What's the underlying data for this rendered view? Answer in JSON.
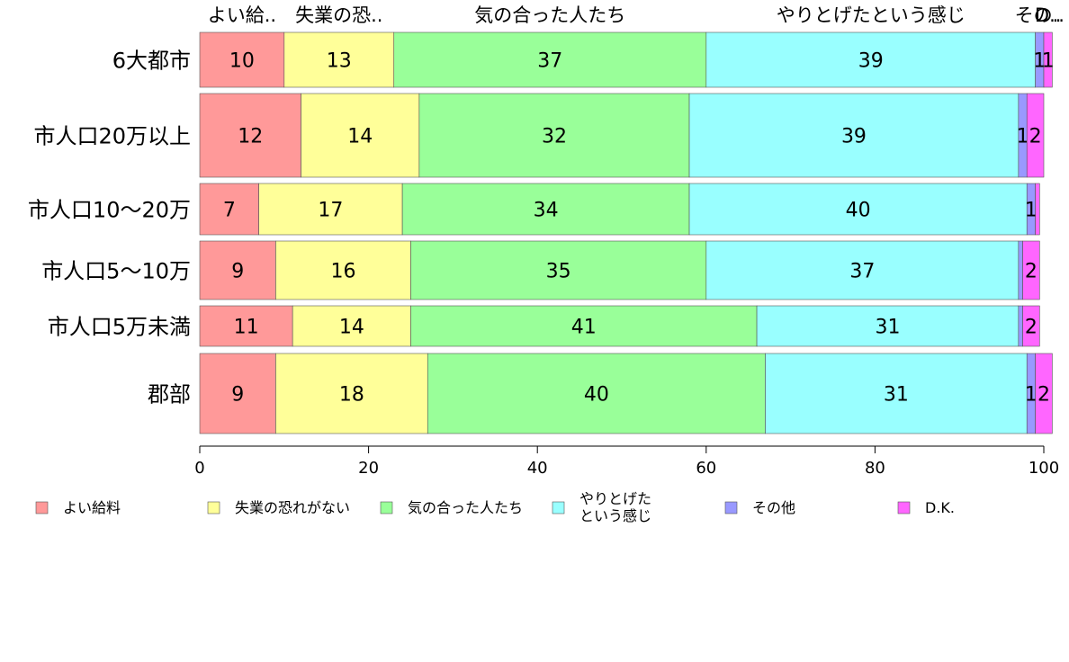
{
  "chart_data": {
    "type": "bar",
    "orientation": "horizontal",
    "stacked": true,
    "categories": [
      "6大都市",
      "市人口20万以上",
      "市人口10〜20万",
      "市人口5〜10万",
      "市人口5万未満",
      "郡部"
    ],
    "series": [
      {
        "name": "よい給料",
        "values": [
          10,
          12,
          7,
          9,
          11,
          9
        ],
        "color": "#ff9999"
      },
      {
        "name": "失業の恐れがない",
        "values": [
          13,
          14,
          17,
          16,
          14,
          18
        ],
        "color": "#ffff99"
      },
      {
        "name": "気の合った人たち",
        "values": [
          37,
          32,
          34,
          35,
          41,
          40
        ],
        "color": "#99ff99"
      },
      {
        "name": "やりとげた\nという感じ",
        "values": [
          39,
          39,
          40,
          37,
          31,
          31
        ],
        "color": "#99ffff"
      },
      {
        "name": "その他",
        "values": [
          1,
          1,
          1,
          0.5,
          0.5,
          1
        ],
        "color": "#9999ff"
      },
      {
        "name": "D.K.",
        "values": [
          1,
          2,
          0.5,
          2,
          2,
          2
        ],
        "color": "#ff66ff"
      }
    ],
    "data_labels": [
      [
        "10",
        "13",
        "37",
        "39",
        "1",
        "1"
      ],
      [
        "12",
        "14",
        "32",
        "39",
        "1",
        "2"
      ],
      [
        "7",
        "17",
        "34",
        "40",
        "1",
        ""
      ],
      [
        "9",
        "16",
        "35",
        "37",
        "",
        "2"
      ],
      [
        "11",
        "14",
        "41",
        "31",
        "",
        "2"
      ],
      [
        "9",
        "18",
        "40",
        "31",
        "1",
        "2"
      ]
    ],
    "top_labels": [
      "よい給..",
      "失業の恐..",
      "気の合った人たち",
      "やりとげたという感じ",
      "その..",
      "D.."
    ],
    "xlim": [
      0,
      100
    ],
    "xticks": [
      "0",
      "20",
      "40",
      "60",
      "80",
      "100"
    ],
    "legend_position": "bottom",
    "grid": false
  }
}
